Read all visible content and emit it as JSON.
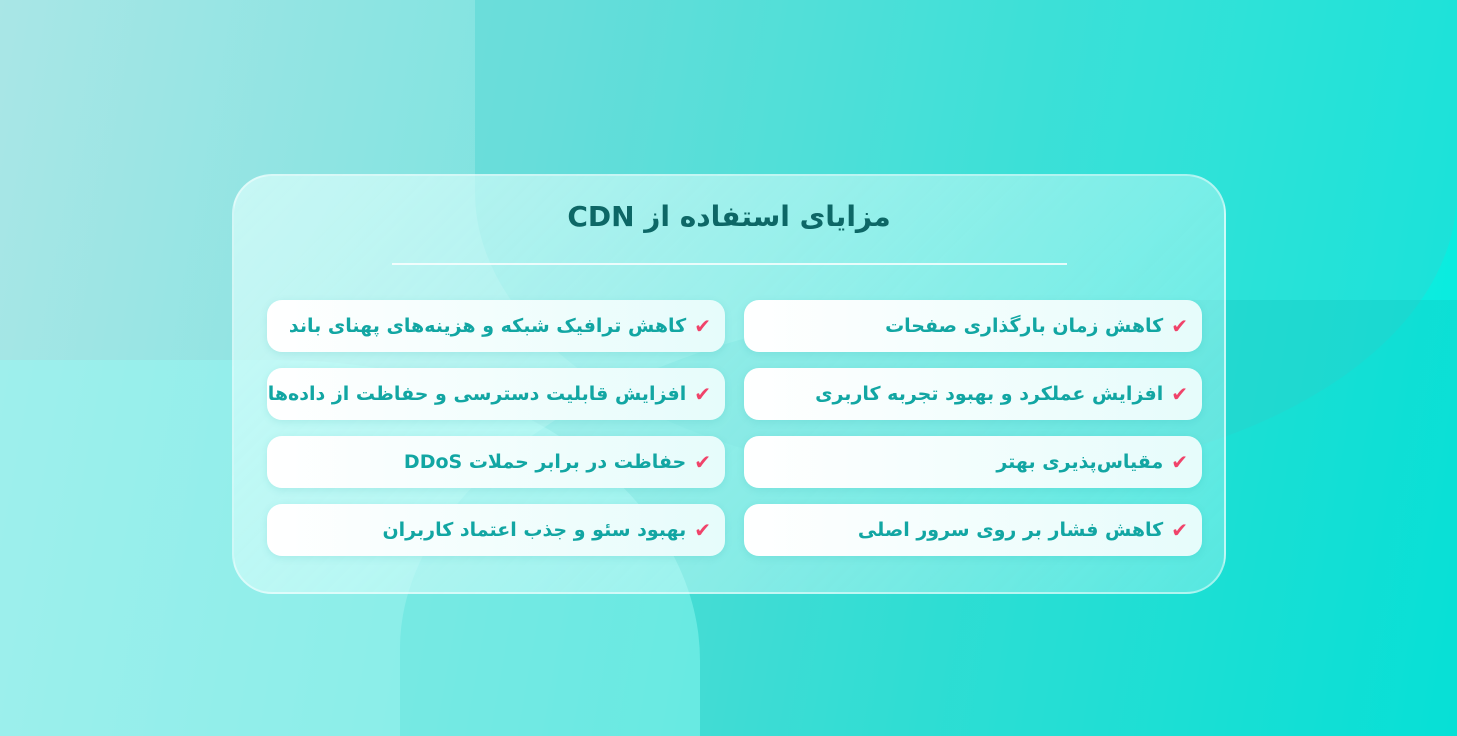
{
  "title": "مزایای استفاده از CDN",
  "colors": {
    "accent": "#12a6a3",
    "check": "#f0436a",
    "title": "#0d6766"
  },
  "check_icon": "checkmark-icon",
  "right_column": [
    "کاهش زمان بارگذاری صفحات",
    "افزایش عملکرد و بهبود تجربه کاربری",
    "مقیاس‌پذیری بهتر",
    "کاهش فشار بر روی سرور اصلی"
  ],
  "left_column": [
    "کاهش ترافیک شبکه و هزینه‌های پهنای باند",
    "افزایش قابلیت دسترسی و حفاظت از داده‌ها",
    "حفاظت در برابر حملات DDoS",
    "بهبود سئو و جذب اعتماد کاربران"
  ]
}
